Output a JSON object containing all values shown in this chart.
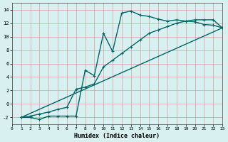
{
  "xlabel": "Humidex (Indice chaleur)",
  "ylabel": "",
  "bg_color": "#d8f0f0",
  "grid_color": "#d4a0a0",
  "line_color": "#006666",
  "xlim": [
    0,
    23
  ],
  "ylim": [
    -3,
    15
  ],
  "yticks": [
    -2,
    0,
    2,
    4,
    6,
    8,
    10,
    12,
    14
  ],
  "xticks": [
    0,
    1,
    2,
    3,
    4,
    5,
    6,
    7,
    8,
    9,
    10,
    11,
    12,
    13,
    14,
    15,
    16,
    17,
    18,
    19,
    20,
    21,
    22,
    23
  ],
  "line1_x": [
    1,
    2,
    3,
    4,
    5,
    6,
    7,
    8,
    9,
    10,
    11,
    12,
    13,
    14,
    15,
    16,
    17,
    18,
    19,
    20,
    21,
    22,
    23
  ],
  "line1_y": [
    -2,
    -2,
    -2.3,
    -1.8,
    -1.8,
    -1.8,
    -1.8,
    5.0,
    4.2,
    10.5,
    7.8,
    13.5,
    13.8,
    13.2,
    13.0,
    12.6,
    12.3,
    12.5,
    12.3,
    12.2,
    11.8,
    11.7,
    11.3
  ],
  "line2_x": [
    1,
    2,
    3,
    4,
    5,
    6,
    7,
    8,
    9,
    10,
    11,
    12,
    13,
    14,
    15,
    16,
    17,
    18,
    19,
    20,
    21,
    22,
    23
  ],
  "line2_y": [
    -2,
    -1.8,
    -1.5,
    -1.2,
    -0.8,
    -0.5,
    2.2,
    2.5,
    3.0,
    5.5,
    6.5,
    7.5,
    8.5,
    9.5,
    10.5,
    11.0,
    11.5,
    12.0,
    12.3,
    12.5,
    12.5,
    12.5,
    11.3
  ],
  "line3_x": [
    1,
    23
  ],
  "line3_y": [
    -2,
    11.3
  ]
}
